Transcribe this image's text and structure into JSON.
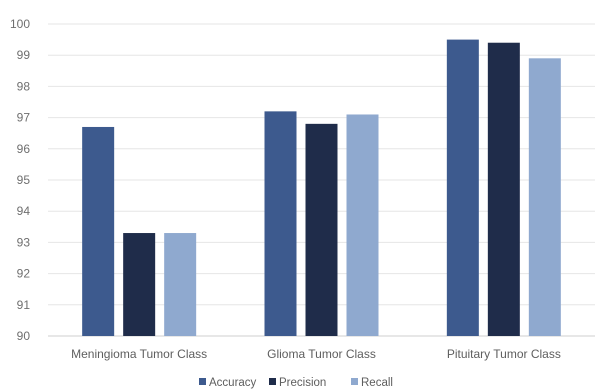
{
  "chart_data": {
    "type": "bar",
    "categories": [
      "Meningioma Tumor Class",
      "Glioma Tumor Class",
      "Pituitary Tumor Class"
    ],
    "series": [
      {
        "name": "Accuracy",
        "color": "#3d5a8e",
        "values": [
          96.7,
          97.2,
          99.5
        ]
      },
      {
        "name": "Precision",
        "color": "#1f2c4a",
        "values": [
          93.3,
          96.8,
          99.4
        ]
      },
      {
        "name": "Recall",
        "color": "#8fa9cf",
        "values": [
          93.3,
          97.1,
          98.9
        ]
      }
    ],
    "ylim": [
      90,
      100
    ],
    "yticks": [
      90,
      91,
      92,
      93,
      94,
      95,
      96,
      97,
      98,
      99,
      100
    ],
    "grid": true,
    "legend": "bottom",
    "title": "",
    "xlabel": "",
    "ylabel": ""
  }
}
